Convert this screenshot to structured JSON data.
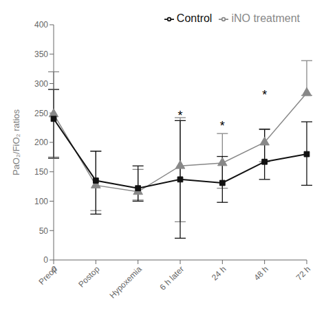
{
  "chart_data": {
    "type": "line",
    "ylabel": "PaO₂/FiO₂ ratios",
    "categories": [
      "Preop",
      "Postop",
      "Hypoxemia",
      "6 h later",
      "24 h",
      "48 h",
      "72 h"
    ],
    "series": [
      {
        "name": "iNO treatment",
        "color": "#888888",
        "marker": "triangle",
        "values": [
          248,
          127,
          116,
          160,
          165,
          200,
          284
        ],
        "yerr_lower": [
          73,
          43,
          14,
          95,
          43,
          33,
          4
        ],
        "yerr_upper": [
          72,
          58,
          38,
          82,
          50,
          23,
          55
        ]
      },
      {
        "name": "Control",
        "color": "#111111",
        "marker": "square",
        "values": [
          240,
          135,
          122,
          137,
          131,
          167,
          180
        ],
        "yerr_lower": [
          67,
          57,
          22,
          100,
          33,
          30,
          53
        ],
        "yerr_upper": [
          50,
          50,
          38,
          100,
          45,
          55,
          55
        ]
      }
    ],
    "ylim": [
      0,
      400
    ],
    "yticks": [
      0,
      50,
      100,
      150,
      200,
      250,
      300,
      350,
      400
    ],
    "annotations": [
      {
        "text": "*",
        "x": "6 h later",
        "y": 233
      },
      {
        "text": "*",
        "x": "24 h",
        "y": 215
      },
      {
        "text": "*",
        "x": "48 h",
        "y": 268
      },
      {
        "text": "0"
      }
    ],
    "legend": "upper right",
    "grid": false
  }
}
